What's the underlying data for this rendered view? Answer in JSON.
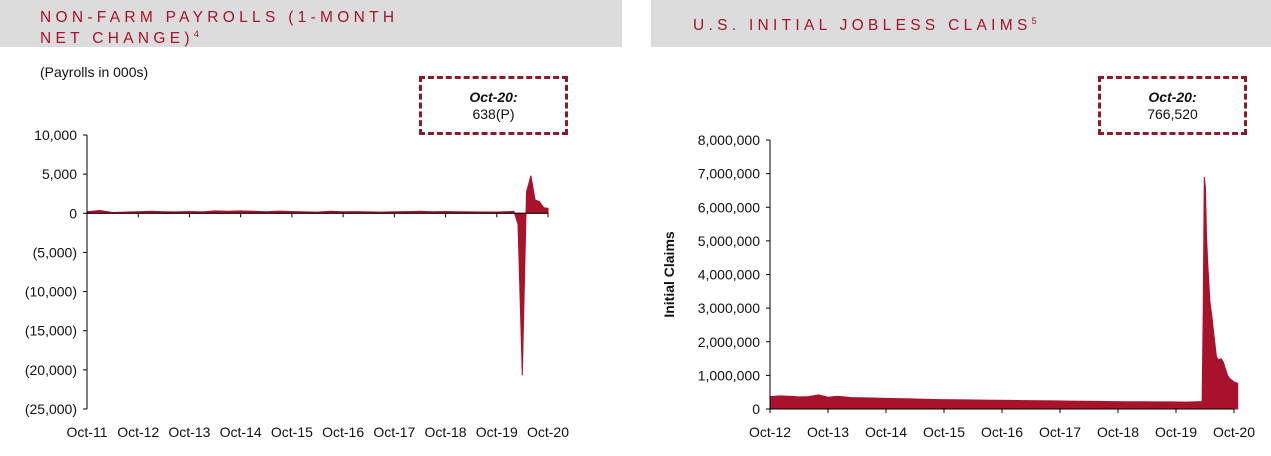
{
  "charts": [
    {
      "title": "NON-FARM PAYROLLS (1-MONTH\nNET CHANGE)",
      "footnote": "4",
      "unit_note": "(Payrolls in 000s)",
      "callout": {
        "label": "Oct-20:",
        "value": "638(P)"
      }
    },
    {
      "title": "U.S. INITIAL JOBLESS CLAIMS",
      "footnote": "5",
      "callout": {
        "label": "Oct-20:",
        "value": "766,520"
      }
    }
  ],
  "chart_data": [
    {
      "type": "area",
      "color": "#a8122a",
      "ylim": [
        -25000,
        10000
      ],
      "yticks": [
        10000,
        5000,
        0,
        -5000,
        -10000,
        -15000,
        -20000,
        -25000
      ],
      "ytick_labels": [
        "10,000",
        "5,000",
        "0",
        "(5,000)",
        "(10,000)",
        "(15,000)",
        "(20,000)",
        "(25,000)"
      ],
      "xlim": [
        "2011-10",
        "2020-10"
      ],
      "xtick_labels": [
        "Oct-11",
        "Oct-12",
        "Oct-13",
        "Oct-14",
        "Oct-15",
        "Oct-16",
        "Oct-17",
        "Oct-18",
        "Oct-19",
        "Oct-20"
      ],
      "x": [
        "2011-10",
        "2012-01",
        "2012-04",
        "2012-07",
        "2012-10",
        "2013-01",
        "2013-04",
        "2013-07",
        "2013-10",
        "2014-01",
        "2014-04",
        "2014-07",
        "2014-10",
        "2015-01",
        "2015-04",
        "2015-07",
        "2015-10",
        "2016-01",
        "2016-04",
        "2016-07",
        "2016-10",
        "2017-01",
        "2017-04",
        "2017-07",
        "2017-10",
        "2018-01",
        "2018-04",
        "2018-07",
        "2018-10",
        "2019-01",
        "2019-04",
        "2019-07",
        "2019-10",
        "2020-01",
        "2020-02",
        "2020-03",
        "2020-04",
        "2020-05",
        "2020-06",
        "2020-07",
        "2020-08",
        "2020-09",
        "2020-10"
      ],
      "values": [
        200,
        350,
        100,
        150,
        200,
        250,
        200,
        180,
        230,
        180,
        300,
        250,
        300,
        250,
        200,
        280,
        230,
        180,
        150,
        250,
        200,
        220,
        180,
        150,
        200,
        220,
        250,
        200,
        230,
        200,
        180,
        170,
        160,
        210,
        250,
        -1400,
        -20700,
        2700,
        4800,
        1700,
        1500,
        700,
        638
      ],
      "ylabel": ""
    },
    {
      "type": "area",
      "color": "#a8122a",
      "ylim": [
        0,
        8000000
      ],
      "yticks": [
        8000000,
        7000000,
        6000000,
        5000000,
        4000000,
        3000000,
        2000000,
        1000000,
        0
      ],
      "ytick_labels": [
        "8,000,000",
        "7,000,000",
        "6,000,000",
        "5,000,000",
        "4,000,000",
        "3,000,000",
        "2,000,000",
        "1,000,000",
        "0"
      ],
      "xlim": [
        "2012-10",
        "2020-10"
      ],
      "xtick_labels": [
        "Oct-12",
        "Oct-13",
        "Oct-14",
        "Oct-15",
        "Oct-16",
        "Oct-17",
        "Oct-18",
        "Oct-19",
        "Oct-20"
      ],
      "ylabel": "Initial Claims",
      "x": [
        "2012-10-06",
        "2012-12-01",
        "2013-02-01",
        "2013-04-01",
        "2013-06-01",
        "2013-08-01",
        "2013-10-01",
        "2013-12-01",
        "2014-03-01",
        "2014-06-01",
        "2014-09-01",
        "2014-12-01",
        "2015-03-01",
        "2015-06-01",
        "2015-09-01",
        "2015-12-01",
        "2016-03-01",
        "2016-06-01",
        "2016-09-01",
        "2016-12-01",
        "2017-03-01",
        "2017-06-01",
        "2017-09-01",
        "2017-12-01",
        "2018-03-01",
        "2018-06-01",
        "2018-09-01",
        "2018-12-01",
        "2019-03-01",
        "2019-06-01",
        "2019-09-01",
        "2019-12-01",
        "2020-02-29",
        "2020-03-07",
        "2020-03-14",
        "2020-03-21",
        "2020-03-28",
        "2020-04-04",
        "2020-04-11",
        "2020-04-18",
        "2020-04-25",
        "2020-05-02",
        "2020-05-16",
        "2020-05-30",
        "2020-06-13",
        "2020-06-27",
        "2020-07-11",
        "2020-07-25",
        "2020-08-08",
        "2020-08-22",
        "2020-09-05",
        "2020-09-19",
        "2020-10-03",
        "2020-10-17",
        "2020-10-24"
      ],
      "values": [
        370000,
        390000,
        380000,
        360000,
        370000,
        420000,
        350000,
        380000,
        340000,
        330000,
        320000,
        310000,
        300000,
        290000,
        280000,
        275000,
        270000,
        265000,
        260000,
        255000,
        250000,
        245000,
        240000,
        235000,
        230000,
        225000,
        220000,
        215000,
        215000,
        210000,
        210000,
        205000,
        220000,
        210000,
        250000,
        2900000,
        6900000,
        6600000,
        5200000,
        4400000,
        3800000,
        3200000,
        2700000,
        2100000,
        1550000,
        1450000,
        1500000,
        1400000,
        1200000,
        1000000,
        900000,
        850000,
        800000,
        780000,
        766520
      ]
    }
  ]
}
